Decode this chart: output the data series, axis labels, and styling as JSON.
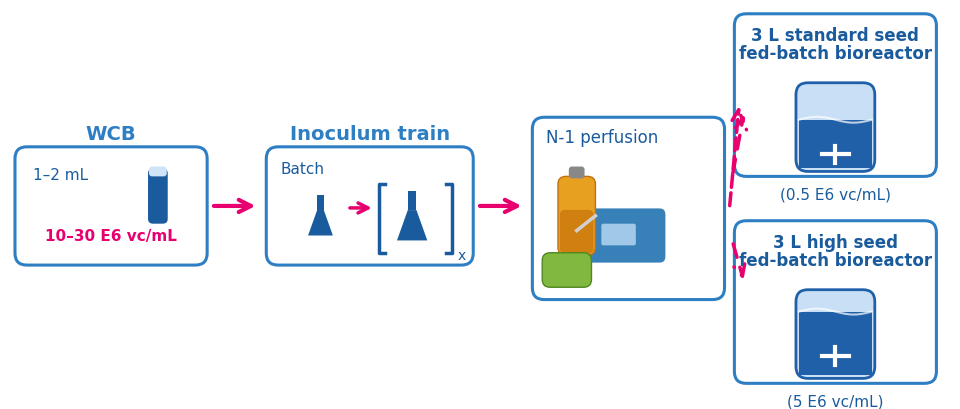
{
  "bg_color": "#ffffff",
  "blue_dark": "#1a5b9e",
  "blue_mid": "#2e7ec4",
  "blue_light": "#5ba4d4",
  "blue_box_edge": "#2e7ec4",
  "pink": "#e8006f",
  "pink_arrow": "#e8006f",
  "box_wcb_title": "WCB",
  "box_wcb_line1": "1–2 mL",
  "box_wcb_line2": "10–30 E6 vc/mL",
  "box_inoc_title": "Inoculum train",
  "box_inoc_sub": "Batch",
  "box_n1_title": "N-1 perfusion",
  "box_br1_line1": "3 L standard seed",
  "box_br1_line2": "fed-batch bioreactor",
  "box_br1_conc": "(0.5 E6 vc/mL)",
  "box_br2_line1": "3 L high seed",
  "box_br2_line2": "fed-batch bioreactor",
  "box_br2_conc": "(5 E6 vc/mL)",
  "figsize": [
    9.6,
    4.1
  ],
  "dpi": 100
}
